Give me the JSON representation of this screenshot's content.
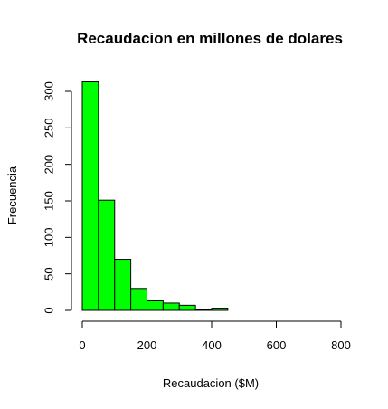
{
  "chart_data": {
    "type": "bar",
    "title": "Recaudacion en millones de dolares",
    "xlabel": "Recaudacion ($M)",
    "ylabel": "Frecuencia",
    "bin_edges": [
      0,
      50,
      100,
      150,
      200,
      250,
      300,
      350,
      400,
      450,
      500,
      550,
      600,
      650,
      700,
      750,
      800
    ],
    "values": [
      313,
      151,
      70,
      30,
      13,
      10,
      7,
      1,
      3,
      0,
      0,
      0,
      0,
      0,
      0,
      0
    ],
    "xlim": [
      0,
      800
    ],
    "ylim": [
      0,
      300
    ],
    "x_ticks": [
      0,
      200,
      400,
      600,
      800
    ],
    "y_ticks": [
      0,
      50,
      100,
      150,
      200,
      250,
      300
    ],
    "bar_color": "#00FF00",
    "grid": false
  }
}
